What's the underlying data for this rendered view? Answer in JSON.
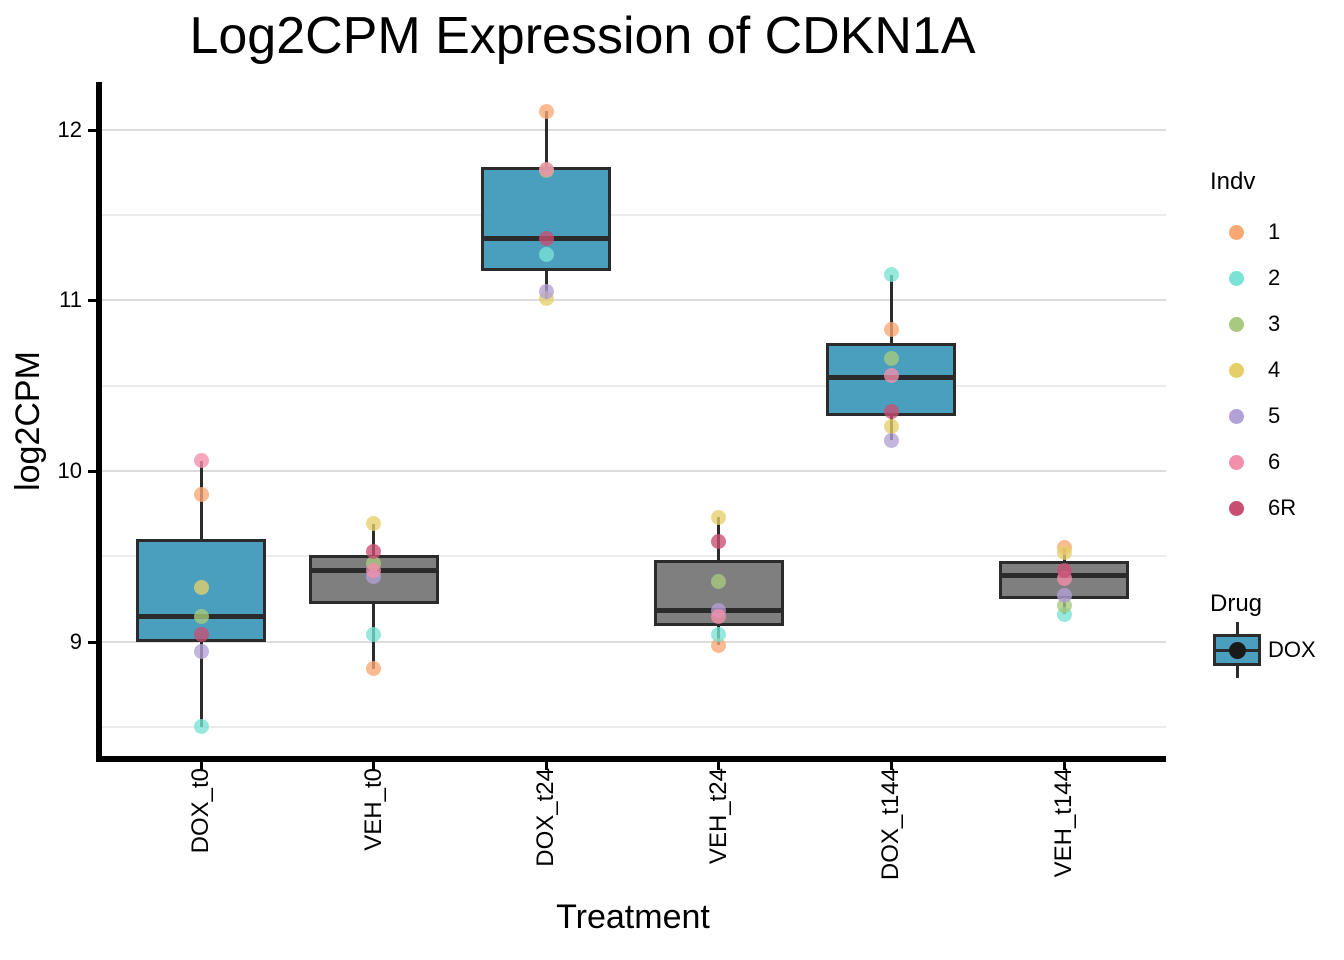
{
  "title": "Log2CPM Expression of CDKN1A",
  "axes": {
    "x_label": "Treatment",
    "y_label": "log2CPM",
    "y_ticks": [
      "9",
      "10",
      "11",
      "12"
    ],
    "y_tick_values": [
      9,
      10,
      11,
      12
    ],
    "y_minor_values": [
      8.5,
      9.5,
      10.5,
      11.5
    ],
    "categories": [
      "DOX_t0",
      "VEH_t0",
      "DOX_t24",
      "VEH_t24",
      "DOX_t144",
      "VEH_t144"
    ]
  },
  "legend": {
    "indv_title": "Indv",
    "indv": [
      {
        "label": "1",
        "color": "#F8A873"
      },
      {
        "label": "2",
        "color": "#7AE3D4"
      },
      {
        "label": "3",
        "color": "#A8CA7E"
      },
      {
        "label": "4",
        "color": "#E6CF6B"
      },
      {
        "label": "5",
        "color": "#B3A0D6"
      },
      {
        "label": "6",
        "color": "#F28FAB"
      },
      {
        "label": "6R",
        "color": "#CA4E72"
      }
    ],
    "drug_title": "Drug",
    "drug": [
      {
        "label": "DOX",
        "color": "#4A9EBE"
      }
    ]
  },
  "chart_data": {
    "type": "boxplot",
    "title": "Log2CPM Expression of CDKN1A",
    "xlabel": "Treatment",
    "ylabel": "log2CPM",
    "ylim": [
      8.33,
      12.28
    ],
    "grid": "on",
    "legend_position": "right",
    "categories": [
      "DOX_t0",
      "VEH_t0",
      "DOX_t24",
      "VEH_t24",
      "DOX_t144",
      "VEH_t144"
    ],
    "drug_colors": {
      "DOX": "#4A9EBE",
      "VEH": "#7F7F7F"
    },
    "boxes": [
      {
        "category": "DOX_t0",
        "drug": "DOX",
        "q1": 9.0,
        "median": 9.15,
        "q3": 9.6,
        "whisker_low": 8.5,
        "whisker_high": 10.06
      },
      {
        "category": "VEH_t0",
        "drug": "VEH",
        "q1": 9.22,
        "median": 9.42,
        "q3": 9.51,
        "whisker_low": 8.84,
        "whisker_high": 9.69
      },
      {
        "category": "DOX_t24",
        "drug": "DOX",
        "q1": 11.17,
        "median": 11.36,
        "q3": 11.78,
        "whisker_low": 11.01,
        "whisker_high": 12.11
      },
      {
        "category": "VEH_t24",
        "drug": "VEH",
        "q1": 9.09,
        "median": 9.18,
        "q3": 9.48,
        "whisker_low": 8.98,
        "whisker_high": 9.73
      },
      {
        "category": "DOX_t144",
        "drug": "DOX",
        "q1": 10.32,
        "median": 10.55,
        "q3": 10.75,
        "whisker_low": 10.18,
        "whisker_high": 11.15
      },
      {
        "category": "VEH_t144",
        "drug": "VEH",
        "q1": 9.25,
        "median": 9.39,
        "q3": 9.47,
        "whisker_low": 9.16,
        "whisker_high": 9.55
      }
    ],
    "series": [
      {
        "name": "1",
        "color": "#F8A873",
        "values": [
          9.86,
          8.84,
          12.11,
          8.98,
          10.83,
          9.55
        ]
      },
      {
        "name": "2",
        "color": "#7AE3D4",
        "values": [
          8.5,
          9.04,
          11.27,
          9.04,
          11.15,
          9.16
        ]
      },
      {
        "name": "3",
        "color": "#A8CA7E",
        "values": [
          9.15,
          9.46,
          11.76,
          9.35,
          10.66,
          9.21
        ]
      },
      {
        "name": "4",
        "color": "#E6CF6B",
        "values": [
          9.32,
          9.69,
          11.01,
          9.73,
          10.26,
          9.52
        ]
      },
      {
        "name": "5",
        "color": "#B3A0D6",
        "values": [
          8.94,
          9.38,
          11.05,
          9.18,
          10.18,
          9.27
        ]
      },
      {
        "name": "6",
        "color": "#F28FAB",
        "values": [
          10.06,
          9.42,
          11.77,
          9.15,
          10.56,
          9.37
        ]
      },
      {
        "name": "6R",
        "color": "#CA4E72",
        "values": [
          9.04,
          9.53,
          11.36,
          9.59,
          10.35,
          9.42
        ]
      }
    ]
  }
}
